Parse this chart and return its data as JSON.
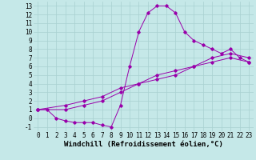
{
  "xlabel": "Windchill (Refroidissement éolien,°C)",
  "background_color": "#c5e8e8",
  "grid_color": "#a8d0d0",
  "line_color": "#9900aa",
  "xlim": [
    -0.5,
    23.5
  ],
  "ylim": [
    -1.5,
    13.5
  ],
  "xticks": [
    0,
    1,
    2,
    3,
    4,
    5,
    6,
    7,
    8,
    9,
    10,
    11,
    12,
    13,
    14,
    15,
    16,
    17,
    18,
    19,
    20,
    21,
    22,
    23
  ],
  "yticks": [
    -1,
    0,
    1,
    2,
    3,
    4,
    5,
    6,
    7,
    8,
    9,
    10,
    11,
    12,
    13
  ],
  "line1_x": [
    0,
    1,
    2,
    3,
    4,
    5,
    6,
    7,
    8,
    9,
    10,
    11,
    12,
    13,
    14,
    15,
    16,
    17,
    18,
    19,
    20,
    21,
    22,
    23
  ],
  "line1_y": [
    1.0,
    1.0,
    0.0,
    -0.3,
    -0.5,
    -0.5,
    -0.5,
    -0.8,
    -1.0,
    1.5,
    6.0,
    10.0,
    12.2,
    13.0,
    13.0,
    12.2,
    10.0,
    9.0,
    8.5,
    8.0,
    7.5,
    8.0,
    7.0,
    6.5
  ],
  "line2_x": [
    0,
    3,
    5,
    7,
    9,
    11,
    13,
    15,
    17,
    19,
    21,
    23
  ],
  "line2_y": [
    1.0,
    1.5,
    2.0,
    2.5,
    3.5,
    4.0,
    5.0,
    5.5,
    6.0,
    7.0,
    7.5,
    7.0
  ],
  "line3_x": [
    0,
    3,
    5,
    7,
    9,
    11,
    13,
    15,
    17,
    19,
    21,
    23
  ],
  "line3_y": [
    1.0,
    1.0,
    1.5,
    2.0,
    3.0,
    4.0,
    4.5,
    5.0,
    6.0,
    6.5,
    7.0,
    6.5
  ],
  "font_family": "monospace",
  "tick_fontsize": 5.5,
  "xlabel_fontsize": 6.5
}
